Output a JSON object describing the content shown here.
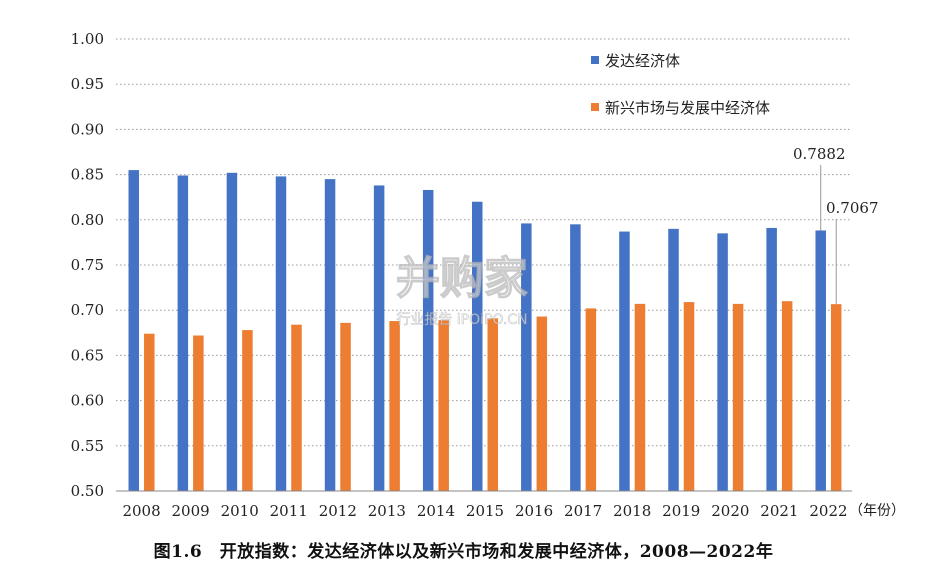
{
  "caption": "图1.6　开放指数：发达经济体以及新兴市场和发展中经济体，2008—2022年",
  "watermark": {
    "main": "行业报告 iPOiPO.cn",
    "brand": "并购家",
    "sub": "行业报告 iPOiPO.CN"
  },
  "chart_data": {
    "type": "bar",
    "categories": [
      "2008",
      "2009",
      "2010",
      "2011",
      "2012",
      "2013",
      "2014",
      "2015",
      "2016",
      "2017",
      "2018",
      "2019",
      "2020",
      "2021",
      "2022"
    ],
    "x_unit_label": "（年份）",
    "ylim": [
      0.5,
      1.0
    ],
    "yticks": [
      "0.50",
      "0.55",
      "0.60",
      "0.65",
      "0.70",
      "0.75",
      "0.80",
      "0.85",
      "0.90",
      "0.95",
      "1.00"
    ],
    "ytick_values": [
      0.5,
      0.55,
      0.6,
      0.65,
      0.7,
      0.75,
      0.8,
      0.85,
      0.9,
      0.95,
      1.0
    ],
    "grid": "horizontal dotted",
    "legend_position": "top-right",
    "series": [
      {
        "name": "发达经济体",
        "color": "#4472C4",
        "values": [
          0.855,
          0.849,
          0.852,
          0.848,
          0.845,
          0.838,
          0.833,
          0.82,
          0.796,
          0.795,
          0.787,
          0.79,
          0.785,
          0.791,
          0.7882
        ]
      },
      {
        "name": "新兴市场与发展中经济体",
        "color": "#ED7D31",
        "values": [
          0.674,
          0.672,
          0.678,
          0.684,
          0.686,
          0.688,
          0.689,
          0.691,
          0.693,
          0.702,
          0.707,
          0.709,
          0.707,
          0.71,
          0.7067
        ]
      }
    ],
    "annotations": [
      {
        "series": 0,
        "category": "2022",
        "text": "0.7882"
      },
      {
        "series": 1,
        "category": "2022",
        "text": "0.7067"
      }
    ]
  }
}
